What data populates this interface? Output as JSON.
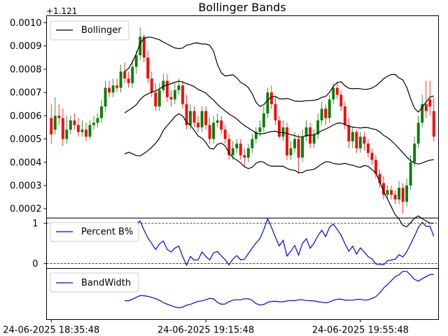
{
  "chart_data": {
    "type": "candlestick",
    "title": "Bollinger Bands",
    "offset_label": "+1.121",
    "panels": [
      {
        "name": "price",
        "legend": [
          "Bollinger"
        ],
        "ytick_labels": [
          "0.0002",
          "0.0003",
          "0.0004",
          "0.0005",
          "0.0006",
          "0.0007",
          "0.0008",
          "0.0009",
          "0.0010"
        ],
        "ylim": [
          0.00016,
          0.00103
        ],
        "offset": 1.121
      },
      {
        "name": "percent_b",
        "legend": [
          "Percent B%"
        ],
        "ytick_labels": [
          "0",
          "1"
        ],
        "ylim": [
          -0.12,
          1.13
        ],
        "reference_lines": [
          0,
          1
        ]
      },
      {
        "name": "bandwidth",
        "legend": [
          "BandWidth"
        ],
        "ytick_labels": []
      }
    ],
    "x_tick_labels": [
      "24-06-2025 18:35:48",
      "24-06-2025 19:15:48",
      "24-06-2025 19:55:48"
    ],
    "x_tick_index": [
      0,
      40,
      80
    ],
    "n_candles": 100,
    "window": 20,
    "colors": {
      "up": "#008000",
      "down": "#ff0000",
      "band": "#000000",
      "indicator": "#0000ff"
    },
    "candle_close": [
      5.2,
      6.0,
      5.9,
      5.0,
      5.4,
      5.8,
      5.6,
      5.3,
      5.4,
      5.1,
      5.6,
      5.7,
      5.9,
      6.4,
      7.2,
      7.0,
      7.3,
      7.2,
      7.9,
      7.6,
      7.4,
      8.1,
      8.6,
      9.4,
      8.5,
      7.6,
      7.0,
      6.4,
      7.1,
      7.5,
      6.8,
      6.7,
      7.1,
      7.3,
      6.5,
      5.6,
      6.2,
      5.7,
      5.5,
      6.2,
      5.6,
      5.0,
      5.7,
      5.8,
      5.4,
      5.0,
      4.3,
      4.6,
      4.8,
      4.3,
      4.2,
      4.6,
      5.0,
      5.3,
      5.5,
      6.1,
      7.0,
      6.5,
      5.8,
      5.1,
      5.5,
      4.3,
      4.6,
      5.0,
      4.2,
      5.1,
      5.5,
      4.8,
      5.2,
      5.8,
      6.3,
      5.9,
      6.7,
      7.2,
      6.9,
      6.4,
      5.6,
      4.9,
      5.3,
      4.6,
      5.1,
      4.8,
      4.4,
      4.1,
      3.5,
      3.1,
      2.6,
      2.8,
      2.6,
      2.4,
      2.9,
      2.3,
      3.0,
      4.0,
      4.8,
      5.7,
      6.5,
      6.2,
      6.4,
      5.1
    ],
    "candle_open": [
      5.9,
      5.4,
      6.0,
      5.9,
      5.0,
      5.4,
      5.8,
      5.6,
      5.3,
      5.4,
      5.1,
      5.6,
      5.7,
      5.9,
      6.4,
      7.2,
      7.0,
      7.3,
      7.2,
      7.9,
      7.6,
      7.4,
      8.1,
      8.6,
      9.4,
      8.5,
      7.6,
      7.0,
      6.4,
      7.1,
      7.5,
      6.8,
      6.7,
      7.1,
      7.3,
      6.5,
      5.6,
      6.2,
      5.7,
      5.5,
      6.2,
      5.6,
      5.0,
      5.7,
      5.8,
      5.4,
      5.0,
      4.3,
      4.6,
      4.8,
      4.3,
      4.2,
      4.6,
      5.0,
      5.3,
      5.5,
      6.1,
      7.0,
      6.5,
      5.8,
      5.1,
      5.5,
      4.3,
      4.6,
      5.0,
      4.2,
      5.1,
      5.5,
      4.8,
      5.2,
      5.8,
      6.3,
      5.9,
      6.7,
      7.2,
      6.9,
      6.4,
      5.6,
      4.9,
      5.3,
      4.6,
      5.1,
      4.8,
      4.4,
      4.1,
      3.5,
      3.1,
      2.6,
      2.8,
      2.6,
      2.4,
      2.9,
      2.3,
      3.0,
      4.0,
      4.8,
      5.7,
      6.5,
      6.7,
      6.2
    ],
    "candle_high": [
      6.5,
      6.8,
      6.5,
      6.3,
      6.0,
      6.0,
      6.1,
      5.9,
      5.8,
      5.7,
      5.8,
      6.0,
      6.1,
      6.7,
      7.5,
      7.5,
      7.6,
      7.6,
      8.2,
      8.3,
      7.9,
      8.4,
      8.8,
      9.8,
      9.5,
      8.8,
      7.9,
      7.4,
      7.4,
      7.8,
      7.8,
      7.1,
      7.4,
      7.6,
      7.5,
      6.9,
      6.5,
      6.4,
      6.0,
      6.4,
      6.4,
      5.9,
      6.0,
      6.1,
      6.0,
      5.6,
      5.2,
      4.9,
      5.0,
      5.0,
      4.6,
      4.8,
      5.2,
      5.5,
      5.8,
      6.4,
      7.2,
      7.3,
      6.8,
      6.0,
      5.8,
      5.7,
      4.9,
      5.3,
      5.2,
      5.4,
      5.8,
      5.7,
      5.4,
      6.1,
      6.6,
      6.5,
      6.9,
      7.4,
      7.4,
      7.1,
      6.6,
      5.9,
      5.5,
      5.4,
      5.3,
      5.3,
      5.0,
      4.6,
      4.3,
      3.7,
      3.4,
      3.0,
      3.0,
      2.8,
      3.2,
      3.1,
      3.3,
      4.3,
      5.1,
      6.0,
      6.9,
      7.5,
      7.5,
      6.8
    ],
    "candle_low": [
      4.8,
      5.2,
      5.6,
      4.7,
      4.8,
      5.2,
      5.4,
      5.1,
      5.1,
      4.9,
      5.0,
      5.4,
      5.5,
      5.7,
      6.2,
      6.8,
      6.8,
      7.0,
      7.0,
      7.4,
      7.2,
      7.2,
      7.8,
      8.4,
      8.3,
      7.4,
      6.8,
      6.2,
      6.2,
      7.0,
      6.6,
      6.4,
      6.5,
      6.9,
      6.3,
      5.4,
      5.4,
      5.5,
      5.3,
      5.3,
      5.4,
      4.8,
      4.8,
      5.5,
      5.2,
      4.8,
      4.1,
      4.1,
      4.4,
      4.1,
      3.8,
      4.0,
      4.4,
      4.8,
      5.1,
      5.3,
      5.9,
      6.3,
      5.6,
      5.0,
      4.9,
      4.1,
      4.1,
      4.4,
      3.5,
      4.0,
      4.9,
      4.6,
      4.6,
      5.0,
      5.6,
      5.6,
      5.7,
      6.5,
      6.7,
      6.2,
      5.4,
      4.6,
      4.6,
      4.4,
      4.4,
      4.5,
      4.2,
      3.9,
      3.3,
      2.9,
      2.4,
      2.4,
      2.4,
      2.2,
      2.2,
      1.8,
      2.1,
      2.8,
      3.8,
      4.6,
      5.5,
      5.9,
      6.0,
      4.9
    ],
    "value_scale": 0.0001
  }
}
